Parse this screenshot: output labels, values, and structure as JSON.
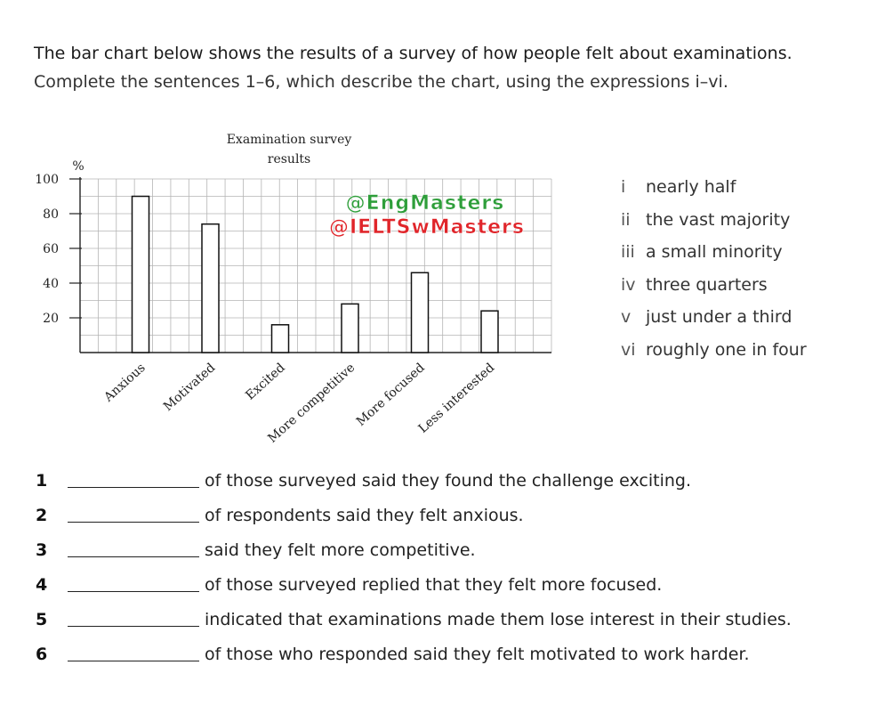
{
  "instructions": {
    "line1": "The bar chart below shows the results of a survey of how people felt about examinations.",
    "line2": "Complete the sentences 1–6, which describe the chart, using the expressions i–vi."
  },
  "watermarks": [
    "@EngMasters",
    "@IELTSwMasters"
  ],
  "chart_data": {
    "type": "bar",
    "title": "Examination survey results",
    "ylabel": "%",
    "ylim": [
      0,
      100
    ],
    "yticks": [
      20,
      40,
      60,
      80,
      100
    ],
    "grid": true,
    "categories": [
      "Anxious",
      "Motivated",
      "Excited",
      "More competitive",
      "More focused",
      "Less interested"
    ],
    "values": [
      90,
      74,
      16,
      28,
      46,
      24
    ],
    "colors": {
      "bar_fill": "#ffffff",
      "bar_stroke": "#111111",
      "grid": "#b5b5b5",
      "watermark_top": "#2e9e3a",
      "watermark_bottom": "#e0252a"
    }
  },
  "expressions": [
    {
      "num": "i",
      "text": "nearly half"
    },
    {
      "num": "ii",
      "text": "the vast majority"
    },
    {
      "num": "iii",
      "text": "a small minority"
    },
    {
      "num": "iv",
      "text": "three quarters"
    },
    {
      "num": "v",
      "text": "just under a third"
    },
    {
      "num": "vi",
      "text": "roughly one in four"
    }
  ],
  "sentences": [
    {
      "num": "1",
      "text": "of those surveyed said they found the challenge exciting."
    },
    {
      "num": "2",
      "text": "of respondents said they felt anxious."
    },
    {
      "num": "3",
      "text": "said they felt more competitive."
    },
    {
      "num": "4",
      "text": "of those surveyed replied that they felt more focused."
    },
    {
      "num": "5",
      "text": "indicated that examinations made them lose interest in their studies."
    },
    {
      "num": "6",
      "text": "of those who responded said they felt motivated to work harder."
    }
  ]
}
